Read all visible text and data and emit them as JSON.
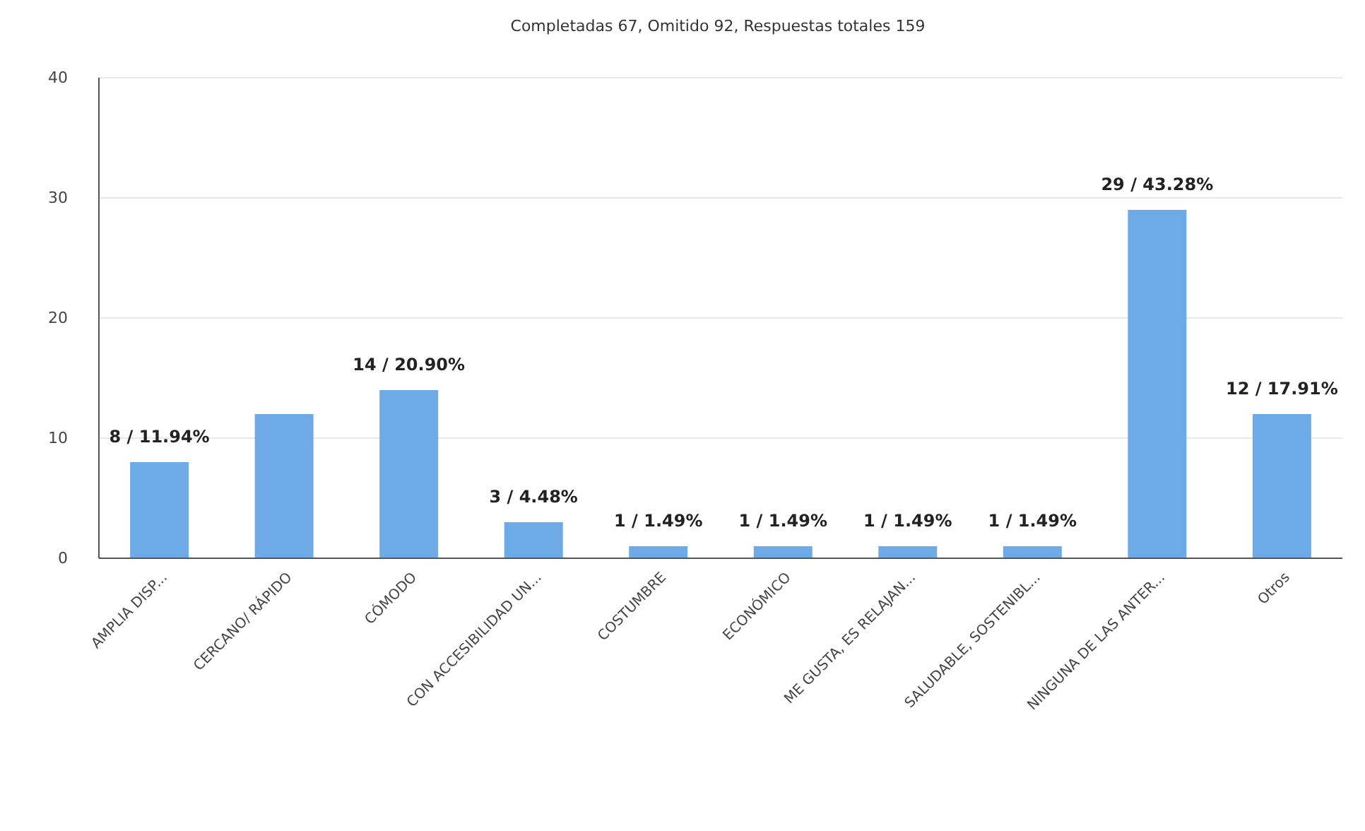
{
  "chart_data": {
    "type": "bar",
    "title": "Completadas 67, Omitido 92, Respuestas totales 159",
    "categories": [
      "AMPLIA DISP...",
      "CERCANO/ RÁPIDO",
      "CÓMODO",
      "CON ACCESIBILIDAD UN...",
      "COSTUMBRE",
      "ECONÓMICO",
      "ME GUSTA, ES RELAJAN...",
      "SALUDABLE, SOSTENIBL...",
      "NINGUNA DE LAS ANTER...",
      "Otros"
    ],
    "values": [
      8,
      12,
      14,
      3,
      1,
      1,
      1,
      1,
      29,
      12
    ],
    "value_labels": [
      "8 / 11.94%",
      null,
      "14 / 20.90%",
      "3 / 4.48%",
      "1 / 1.49%",
      "1 / 1.49%",
      "1 / 1.49%",
      "1 / 1.49%",
      "29 / 43.28%",
      "12 / 17.91%"
    ],
    "color": "#6eaae6",
    "ylim": [
      0,
      40
    ],
    "yticks": [
      0,
      10,
      20,
      30,
      40
    ],
    "grid": "y"
  }
}
